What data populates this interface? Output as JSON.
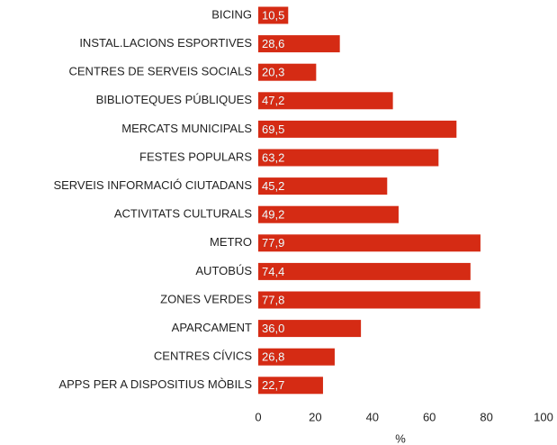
{
  "chart_data": {
    "type": "bar",
    "orientation": "horizontal",
    "categories": [
      "BICING",
      "INSTAL.LACIONS ESPORTIVES",
      "CENTRES DE SERVEIS SOCIALS",
      "BIBLIOTEQUES PÚBLIQUES",
      "MERCATS MUNICIPALS",
      "FESTES POPULARS",
      "SERVEIS INFORMACIÓ CIUTADANS",
      "ACTIVITATS CULTURALS",
      "METRO",
      "AUTOBÚS",
      "ZONES VERDES",
      "APARCAMENT",
      "CENTRES CÍVICS",
      "APPS PER A DISPOSITIUS MÒBILS"
    ],
    "values": [
      10.5,
      28.6,
      20.3,
      47.2,
      69.5,
      63.2,
      45.2,
      49.2,
      77.9,
      74.4,
      77.8,
      36.0,
      26.8,
      22.7
    ],
    "value_labels": [
      "10,5",
      "28,6",
      "20,3",
      "47,2",
      "69,5",
      "63,2",
      "45,2",
      "49,2",
      "77,9",
      "74,4",
      "77,8",
      "36,0",
      "26,8",
      "22,7"
    ],
    "color": "#d52b14",
    "xlim": [
      0,
      100
    ],
    "xticks": [
      0,
      20,
      40,
      60,
      80,
      100
    ],
    "xlabel": "%",
    "grid": false
  }
}
